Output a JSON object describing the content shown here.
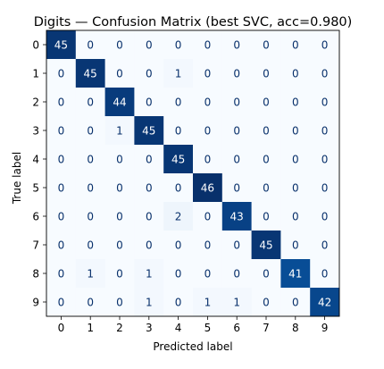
{
  "chart_data": {
    "type": "heatmap",
    "title": "Digits — Confusion Matrix (best SVC, acc=0.980)",
    "xlabel": "Predicted label",
    "ylabel": "True label",
    "x_categories": [
      "0",
      "1",
      "2",
      "3",
      "4",
      "5",
      "6",
      "7",
      "8",
      "9"
    ],
    "y_categories": [
      "0",
      "1",
      "2",
      "3",
      "4",
      "5",
      "6",
      "7",
      "8",
      "9"
    ],
    "matrix": [
      [
        45,
        0,
        0,
        0,
        0,
        0,
        0,
        0,
        0,
        0
      ],
      [
        0,
        45,
        0,
        0,
        1,
        0,
        0,
        0,
        0,
        0
      ],
      [
        0,
        0,
        44,
        0,
        0,
        0,
        0,
        0,
        0,
        0
      ],
      [
        0,
        0,
        1,
        45,
        0,
        0,
        0,
        0,
        0,
        0
      ],
      [
        0,
        0,
        0,
        0,
        45,
        0,
        0,
        0,
        0,
        0
      ],
      [
        0,
        0,
        0,
        0,
        0,
        46,
        0,
        0,
        0,
        0
      ],
      [
        0,
        0,
        0,
        0,
        2,
        0,
        43,
        0,
        0,
        0
      ],
      [
        0,
        0,
        0,
        0,
        0,
        0,
        0,
        45,
        0,
        0
      ],
      [
        0,
        1,
        0,
        1,
        0,
        0,
        0,
        0,
        41,
        0
      ],
      [
        0,
        0,
        0,
        1,
        0,
        1,
        1,
        0,
        0,
        42
      ]
    ],
    "colormap": "Blues",
    "colormap_low": "#f7fbff",
    "colormap_high": "#08306b",
    "text_dark": "#08306b",
    "text_light": "#ffffff",
    "colorbar": false,
    "grid": false
  }
}
